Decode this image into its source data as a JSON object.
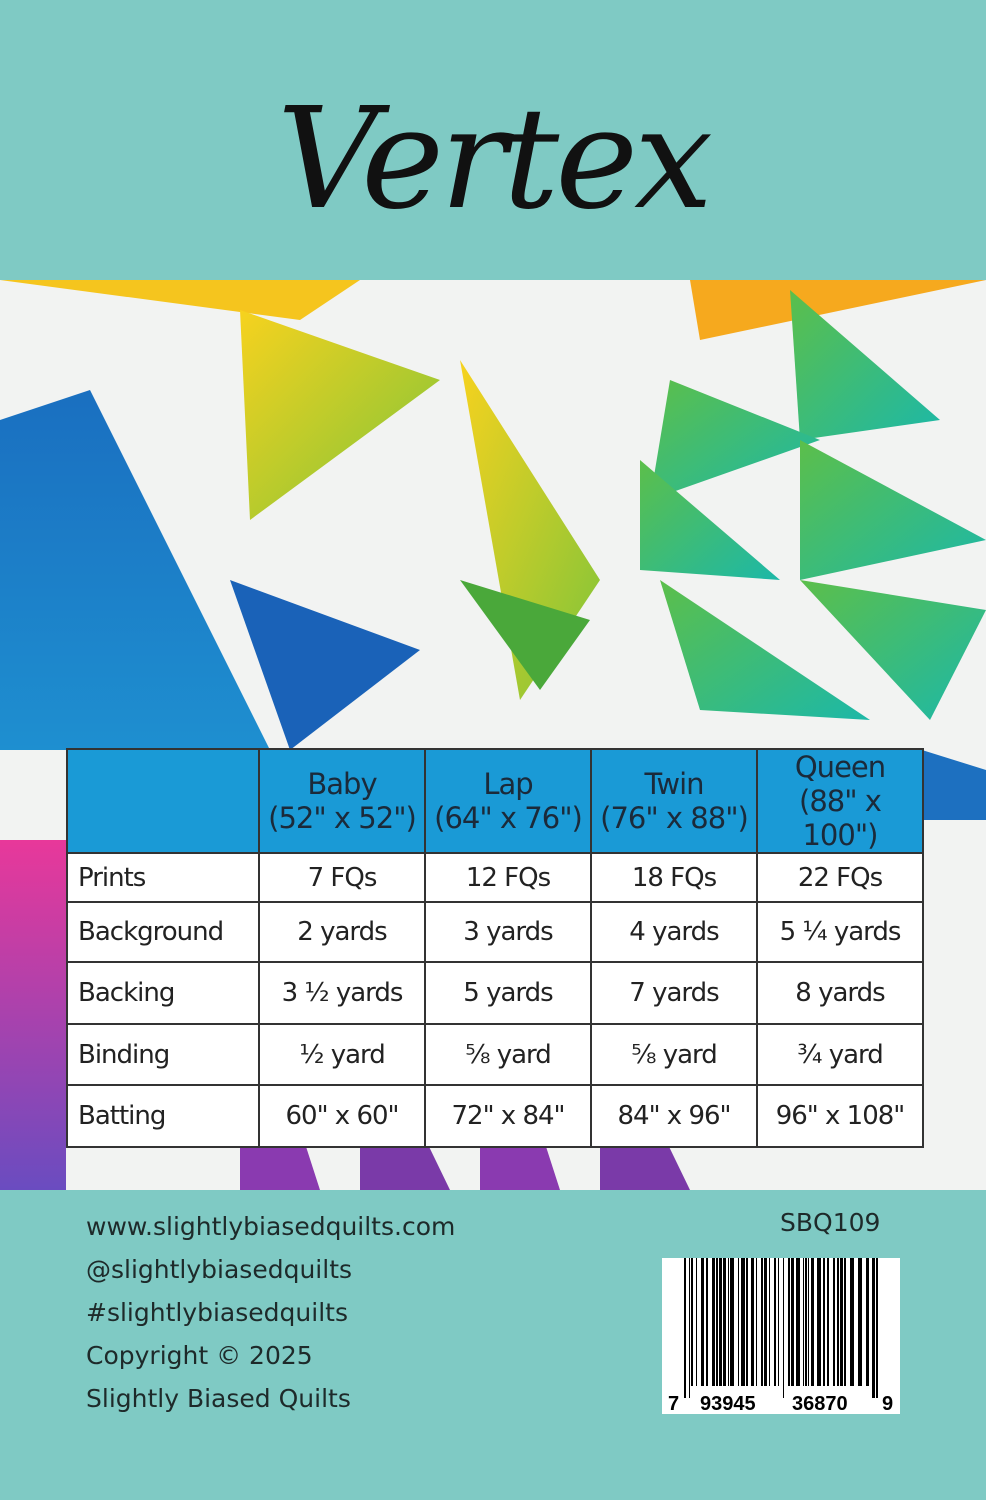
{
  "title": "Vertex",
  "colors": {
    "background": "#7fcac4",
    "table_header": "#1a9ad6"
  },
  "table": {
    "headers": [
      {
        "name": "Baby",
        "size": "(52\" x 52\")"
      },
      {
        "name": "Lap",
        "size": "(64\" x 76\")"
      },
      {
        "name": "Twin",
        "size": "(76\" x 88\")"
      },
      {
        "name": "Queen",
        "size": "(88\" x 100\")"
      }
    ],
    "rows": [
      {
        "label": "Prints",
        "values": [
          "7 FQs",
          "12 FQs",
          "18 FQs",
          "22 FQs"
        ]
      },
      {
        "label": "Background",
        "values": [
          "2 yards",
          "3 yards",
          "4 yards",
          "5 ¼ yards"
        ]
      },
      {
        "label": "Backing",
        "values": [
          "3 ½ yards",
          "5 yards",
          "7 yards",
          "8 yards"
        ]
      },
      {
        "label": "Binding",
        "values": [
          "½ yard",
          "⅝ yard",
          "⅝ yard",
          "¾ yard"
        ]
      },
      {
        "label": "Batting",
        "values": [
          "60\" x 60\"",
          "72\" x 84\"",
          "84\" x 96\"",
          "96\" x 108\""
        ]
      }
    ]
  },
  "footer": {
    "website": "www.slightlybiasedquilts.com",
    "instagram": "@slightlybiasedquilts",
    "hashtag": "#slightlybiasedquilts",
    "copyright": "Copyright © 2025",
    "company": "Slightly Biased Quilts"
  },
  "sku": "SBQ109",
  "barcode": {
    "first": "7",
    "left": "93945",
    "right": "36870",
    "last": "9"
  }
}
